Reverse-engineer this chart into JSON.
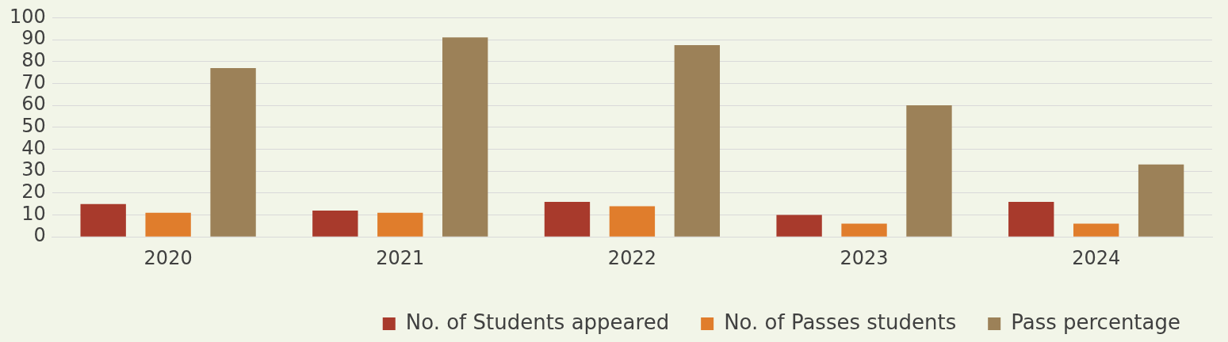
{
  "chart_data": {
    "type": "bar",
    "categories": [
      "2020",
      "2021",
      "2022",
      "2023",
      "2024"
    ],
    "series": [
      {
        "name": "No. of Students appeared",
        "color": "#a83a2c",
        "values": [
          15,
          12,
          16,
          10,
          16
        ]
      },
      {
        "name": "No. of Passes students",
        "color": "#e07d2c",
        "values": [
          11,
          11,
          14,
          6,
          6
        ]
      },
      {
        "name": "Pass percentage",
        "color": "#9c8158",
        "values": [
          77,
          91,
          87.5,
          60,
          33
        ]
      }
    ],
    "ylim": [
      0,
      100
    ],
    "yticks": [
      0,
      10,
      20,
      30,
      40,
      50,
      60,
      70,
      80,
      90,
      100
    ],
    "grid": "y",
    "legend": "bottom"
  }
}
